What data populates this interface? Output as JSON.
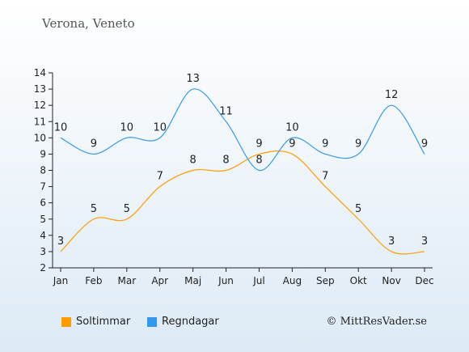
{
  "title": "Verona, Veneto",
  "copyright": "© MittResVader.se",
  "chart_data": {
    "type": "line",
    "categories": [
      "Jan",
      "Feb",
      "Mar",
      "Apr",
      "Maj",
      "Jun",
      "Jul",
      "Aug",
      "Sep",
      "Okt",
      "Nov",
      "Dec"
    ],
    "ylim": [
      2,
      14
    ],
    "yticks": [
      "2",
      "3",
      "4",
      "5",
      "6",
      "7",
      "8",
      "9",
      "10",
      "11",
      "12",
      "13",
      "14"
    ],
    "grid": false,
    "legend_position": "bottom-left",
    "series": [
      {
        "name": "Soltimmar",
        "color": "#ff9c00",
        "values": [
          3,
          5,
          5,
          7,
          8,
          8,
          9,
          9,
          7,
          5,
          3,
          3
        ]
      },
      {
        "name": "Regndagar",
        "color": "#3399ee",
        "values": [
          10,
          9,
          10,
          10,
          13,
          11,
          8,
          10,
          9,
          9,
          12,
          9
        ]
      }
    ]
  }
}
